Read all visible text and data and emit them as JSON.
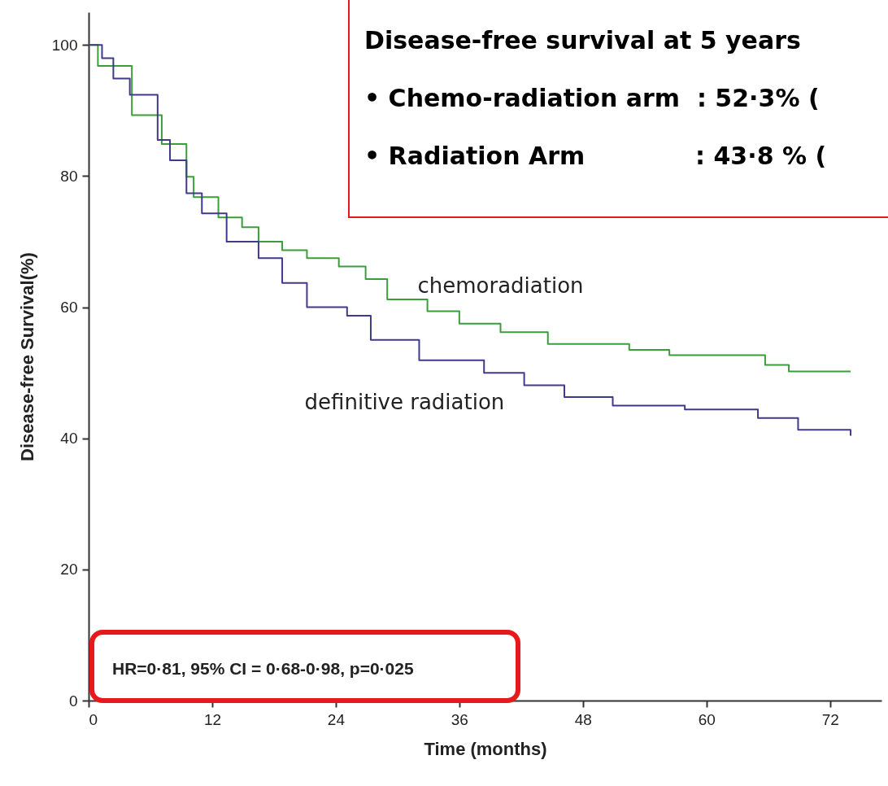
{
  "chart_data": {
    "type": "step",
    "xlabel": "Time (months)",
    "ylabel": "Disease-free Survival(%)",
    "xlim": [
      0,
      77
    ],
    "ylim": [
      0,
      105
    ],
    "xticks": [
      0,
      12,
      24,
      36,
      48,
      60,
      72
    ],
    "yticks": [
      0,
      20,
      40,
      60,
      80,
      100
    ],
    "grid": false,
    "marker": "none",
    "line_style": "solid",
    "annotations": [
      "Disease-free survival at 5 years",
      "• Chemo-radiation arm  : 52·3% (",
      "• Radiation Arm             : 43·8 % (",
      "HR=0·81, 95% CI = 0·68-0·98, p=0·025"
    ],
    "series": [
      {
        "name": "chemoradiation",
        "color": "#3a9e3a",
        "x": [
          0,
          0.9,
          4.2,
          7.1,
          9.5,
          10.2,
          12.6,
          14.9,
          16.5,
          18.8,
          21.2,
          24.3,
          26.9,
          29,
          32.9,
          36,
          40,
          44.6,
          52.5,
          56.4,
          65.7,
          68,
          74
        ],
        "values": [
          100,
          96.8,
          89.3,
          84.9,
          79.9,
          76.8,
          73.7,
          72.2,
          70,
          68.7,
          67.5,
          66.2,
          64.3,
          61.2,
          59.4,
          57.5,
          56.2,
          54.4,
          53.5,
          52.7,
          51.2,
          50.2,
          50.2
        ]
      },
      {
        "name": "definitive radiation",
        "color": "#3f3a8c",
        "x": [
          0,
          1.3,
          2.4,
          4,
          6.7,
          7.9,
          9.5,
          11,
          13.4,
          16.5,
          18.8,
          21.2,
          25.1,
          27.4,
          32.1,
          38.4,
          42.3,
          46.2,
          50.9,
          57.9,
          65,
          68.9,
          74
        ],
        "values": [
          100,
          98,
          94.9,
          92.4,
          85.5,
          82.4,
          77.4,
          74.3,
          70,
          67.5,
          63.7,
          60,
          58.7,
          55,
          51.9,
          50,
          48.1,
          46.3,
          45,
          44.4,
          43.1,
          41.3,
          40.4
        ]
      }
    ]
  }
}
